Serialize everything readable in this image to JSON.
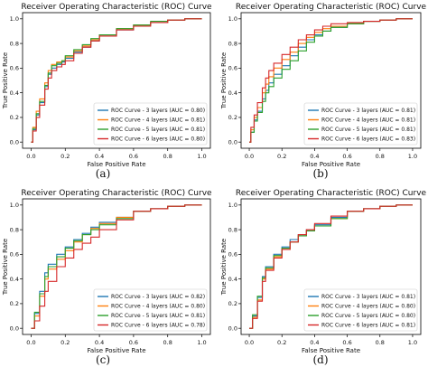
{
  "figure": {
    "captions": [
      "(a)",
      "(b)",
      "(c)",
      "(d)"
    ]
  },
  "chart_data": [
    {
      "type": "line",
      "panel": "(a)",
      "title": "Receiver Operating Characteristic (ROC) Curve",
      "xlabel": "False Positive Rate",
      "ylabel": "True Positive Rate",
      "xlim": [
        -0.05,
        1.05
      ],
      "ylim": [
        -0.05,
        1.05
      ],
      "xticks": [
        "0.0",
        "0.2",
        "0.4",
        "0.6",
        "0.8",
        "1.0"
      ],
      "yticks": [
        "0.0",
        "0.2",
        "0.4",
        "0.6",
        "0.8",
        "1.0"
      ],
      "grid": false,
      "legend_position": "lower-right",
      "series": [
        {
          "name": "ROC Curve - 3 layers (AUC = 0.80)",
          "color": "#1f77b4",
          "x": [
            0,
            0.01,
            0.03,
            0.05,
            0.08,
            0.1,
            0.12,
            0.15,
            0.18,
            0.2,
            0.25,
            0.3,
            0.35,
            0.4,
            0.5,
            0.6,
            0.7,
            0.8,
            0.9,
            1.0
          ],
          "y": [
            0,
            0.1,
            0.22,
            0.32,
            0.45,
            0.55,
            0.6,
            0.63,
            0.65,
            0.68,
            0.73,
            0.77,
            0.82,
            0.86,
            0.91,
            0.95,
            0.97,
            0.99,
            1.0,
            1.0
          ]
        },
        {
          "name": "ROC Curve - 4 layers (AUC = 0.81)",
          "color": "#ff7f0e",
          "x": [
            0,
            0.01,
            0.03,
            0.05,
            0.08,
            0.1,
            0.12,
            0.15,
            0.18,
            0.2,
            0.25,
            0.3,
            0.35,
            0.4,
            0.5,
            0.6,
            0.7,
            0.8,
            0.9,
            1.0
          ],
          "y": [
            0,
            0.12,
            0.25,
            0.35,
            0.48,
            0.58,
            0.63,
            0.65,
            0.66,
            0.69,
            0.74,
            0.78,
            0.83,
            0.87,
            0.92,
            0.95,
            0.97,
            0.99,
            1.0,
            1.0
          ]
        },
        {
          "name": "ROC Curve - 5 layers (AUC = 0.81)",
          "color": "#2ca02c",
          "x": [
            0,
            0.01,
            0.03,
            0.05,
            0.08,
            0.1,
            0.12,
            0.15,
            0.18,
            0.2,
            0.25,
            0.3,
            0.35,
            0.4,
            0.5,
            0.6,
            0.7,
            0.8,
            0.9,
            1.0
          ],
          "y": [
            0,
            0.11,
            0.23,
            0.33,
            0.46,
            0.56,
            0.62,
            0.64,
            0.66,
            0.7,
            0.75,
            0.79,
            0.84,
            0.87,
            0.92,
            0.95,
            0.98,
            0.99,
            1.0,
            1.0
          ]
        },
        {
          "name": "ROC Curve - 6 layers (AUC = 0.80)",
          "color": "#d62728",
          "x": [
            0,
            0.01,
            0.03,
            0.05,
            0.08,
            0.1,
            0.12,
            0.15,
            0.18,
            0.2,
            0.25,
            0.3,
            0.35,
            0.4,
            0.5,
            0.6,
            0.7,
            0.8,
            0.9,
            1.0
          ],
          "y": [
            0,
            0.09,
            0.2,
            0.3,
            0.43,
            0.52,
            0.58,
            0.61,
            0.63,
            0.66,
            0.72,
            0.77,
            0.82,
            0.86,
            0.91,
            0.94,
            0.97,
            0.99,
            1.0,
            1.0
          ]
        }
      ]
    },
    {
      "type": "line",
      "panel": "(b)",
      "title": "Receiver Operating Characteristic (ROC) Curve",
      "xlabel": "False Positive Rate",
      "ylabel": "True Positive Rate",
      "xlim": [
        -0.05,
        1.05
      ],
      "ylim": [
        -0.05,
        1.05
      ],
      "xticks": [
        "0.0",
        "0.2",
        "0.4",
        "0.6",
        "0.8",
        "1.0"
      ],
      "yticks": [
        "0.0",
        "0.2",
        "0.4",
        "0.6",
        "0.8",
        "1.0"
      ],
      "grid": false,
      "legend_position": "lower-right",
      "series": [
        {
          "name": "ROC Curve - 3 layers (AUC = 0.81)",
          "color": "#1f77b4",
          "x": [
            0,
            0.01,
            0.03,
            0.05,
            0.08,
            0.1,
            0.12,
            0.15,
            0.2,
            0.25,
            0.3,
            0.35,
            0.4,
            0.45,
            0.5,
            0.6,
            0.7,
            0.8,
            0.9,
            1.0
          ],
          "y": [
            0,
            0.08,
            0.18,
            0.25,
            0.35,
            0.42,
            0.48,
            0.55,
            0.62,
            0.7,
            0.77,
            0.83,
            0.87,
            0.9,
            0.93,
            0.96,
            0.98,
            0.99,
            1.0,
            1.0
          ]
        },
        {
          "name": "ROC Curve - 4 layers (AUC = 0.81)",
          "color": "#ff7f0e",
          "x": [
            0,
            0.01,
            0.03,
            0.05,
            0.08,
            0.1,
            0.12,
            0.15,
            0.2,
            0.25,
            0.3,
            0.35,
            0.4,
            0.45,
            0.5,
            0.6,
            0.7,
            0.8,
            0.9,
            1.0
          ],
          "y": [
            0,
            0.1,
            0.2,
            0.28,
            0.4,
            0.47,
            0.53,
            0.6,
            0.67,
            0.73,
            0.8,
            0.85,
            0.89,
            0.92,
            0.94,
            0.96,
            0.98,
            0.99,
            1.0,
            1.0
          ]
        },
        {
          "name": "ROC Curve - 5 layers (AUC = 0.81)",
          "color": "#2ca02c",
          "x": [
            0,
            0.01,
            0.03,
            0.05,
            0.08,
            0.1,
            0.12,
            0.15,
            0.2,
            0.25,
            0.3,
            0.35,
            0.4,
            0.45,
            0.5,
            0.6,
            0.7,
            0.8,
            0.9,
            1.0
          ],
          "y": [
            0,
            0.08,
            0.17,
            0.24,
            0.33,
            0.4,
            0.45,
            0.52,
            0.59,
            0.66,
            0.74,
            0.81,
            0.86,
            0.9,
            0.93,
            0.96,
            0.98,
            0.99,
            1.0,
            1.0
          ]
        },
        {
          "name": "ROC Curve - 6 layers (AUC = 0.83)",
          "color": "#d62728",
          "x": [
            0,
            0.01,
            0.03,
            0.05,
            0.08,
            0.1,
            0.12,
            0.15,
            0.2,
            0.25,
            0.3,
            0.35,
            0.4,
            0.45,
            0.5,
            0.6,
            0.7,
            0.8,
            0.9,
            1.0
          ],
          "y": [
            0,
            0.12,
            0.22,
            0.32,
            0.44,
            0.52,
            0.58,
            0.64,
            0.71,
            0.77,
            0.83,
            0.87,
            0.91,
            0.94,
            0.96,
            0.97,
            0.98,
            0.99,
            1.0,
            1.0
          ]
        }
      ]
    },
    {
      "type": "line",
      "panel": "(c)",
      "title": "Receiver Operating Characteristic (ROC) Curve",
      "xlabel": "False Positive Rate",
      "ylabel": "True Positive Rate",
      "xlim": [
        -0.05,
        1.05
      ],
      "ylim": [
        -0.05,
        1.05
      ],
      "xticks": [
        "0.0",
        "0.2",
        "0.4",
        "0.6",
        "0.8",
        "1.0"
      ],
      "yticks": [
        "0.0",
        "0.2",
        "0.4",
        "0.6",
        "0.8",
        "1.0"
      ],
      "grid": false,
      "legend_position": "lower-right",
      "series": [
        {
          "name": "ROC Curve - 3 layers (AUC = 0.82)",
          "color": "#1f77b4",
          "x": [
            0,
            0.02,
            0.05,
            0.08,
            0.1,
            0.15,
            0.2,
            0.25,
            0.3,
            0.35,
            0.4,
            0.5,
            0.6,
            0.7,
            0.8,
            0.9,
            1.0
          ],
          "y": [
            0,
            0.12,
            0.3,
            0.45,
            0.52,
            0.6,
            0.66,
            0.72,
            0.77,
            0.82,
            0.86,
            0.9,
            0.95,
            0.97,
            0.99,
            1.0,
            1.0
          ]
        },
        {
          "name": "ROC Curve - 4 layers (AUC = 0.80)",
          "color": "#ff7f0e",
          "x": [
            0,
            0.02,
            0.05,
            0.08,
            0.1,
            0.15,
            0.2,
            0.25,
            0.3,
            0.35,
            0.4,
            0.5,
            0.6,
            0.7,
            0.8,
            0.9,
            1.0
          ],
          "y": [
            0,
            0.1,
            0.26,
            0.4,
            0.48,
            0.56,
            0.63,
            0.7,
            0.76,
            0.81,
            0.85,
            0.9,
            0.95,
            0.97,
            0.99,
            1.0,
            1.0
          ]
        },
        {
          "name": "ROC Curve - 5 layers (AUC = 0.81)",
          "color": "#2ca02c",
          "x": [
            0,
            0.02,
            0.05,
            0.08,
            0.1,
            0.15,
            0.2,
            0.25,
            0.3,
            0.35,
            0.4,
            0.5,
            0.6,
            0.7,
            0.8,
            0.9,
            1.0
          ],
          "y": [
            0,
            0.13,
            0.28,
            0.42,
            0.5,
            0.58,
            0.65,
            0.71,
            0.76,
            0.8,
            0.84,
            0.89,
            0.95,
            0.97,
            0.99,
            1.0,
            1.0
          ]
        },
        {
          "name": "ROC Curve - 6 layers (AUC = 0.78)",
          "color": "#d62728",
          "x": [
            0,
            0.02,
            0.05,
            0.08,
            0.1,
            0.15,
            0.2,
            0.25,
            0.3,
            0.35,
            0.4,
            0.5,
            0.6,
            0.7,
            0.8,
            0.9,
            1.0
          ],
          "y": [
            0,
            0.06,
            0.18,
            0.3,
            0.38,
            0.5,
            0.57,
            0.64,
            0.69,
            0.74,
            0.8,
            0.88,
            0.95,
            0.97,
            0.99,
            1.0,
            1.0
          ]
        }
      ]
    },
    {
      "type": "line",
      "panel": "(d)",
      "title": "Receiver Operating Characteristic (ROC) Curve",
      "xlabel": "False Positive Rate",
      "ylabel": "True Positive Rate",
      "xlim": [
        -0.05,
        1.05
      ],
      "ylim": [
        -0.05,
        1.05
      ],
      "xticks": [
        "0.0",
        "0.2",
        "0.4",
        "0.6",
        "0.8",
        "1.0"
      ],
      "yticks": [
        "0.0",
        "0.2",
        "0.4",
        "0.6",
        "0.8",
        "1.0"
      ],
      "grid": false,
      "legend_position": "lower-right",
      "series": [
        {
          "name": "ROC Curve - 3 layers (AUC = 0.81)",
          "color": "#1f77b4",
          "x": [
            0,
            0.02,
            0.05,
            0.08,
            0.1,
            0.15,
            0.2,
            0.25,
            0.3,
            0.35,
            0.4,
            0.5,
            0.6,
            0.7,
            0.8,
            0.9,
            1.0
          ],
          "y": [
            0,
            0.1,
            0.25,
            0.42,
            0.5,
            0.6,
            0.66,
            0.72,
            0.76,
            0.8,
            0.84,
            0.9,
            0.95,
            0.97,
            0.99,
            1.0,
            1.0
          ]
        },
        {
          "name": "ROC Curve - 4 layers (AUC = 0.80)",
          "color": "#ff7f0e",
          "x": [
            0,
            0.02,
            0.05,
            0.08,
            0.1,
            0.15,
            0.2,
            0.25,
            0.3,
            0.35,
            0.4,
            0.5,
            0.6,
            0.7,
            0.8,
            0.9,
            1.0
          ],
          "y": [
            0,
            0.09,
            0.23,
            0.4,
            0.48,
            0.58,
            0.64,
            0.7,
            0.75,
            0.79,
            0.83,
            0.89,
            0.95,
            0.97,
            0.99,
            1.0,
            1.0
          ]
        },
        {
          "name": "ROC Curve - 5 layers (AUC = 0.80)",
          "color": "#2ca02c",
          "x": [
            0,
            0.02,
            0.05,
            0.08,
            0.1,
            0.15,
            0.2,
            0.25,
            0.3,
            0.35,
            0.4,
            0.5,
            0.6,
            0.7,
            0.8,
            0.9,
            1.0
          ],
          "y": [
            0,
            0.11,
            0.26,
            0.41,
            0.49,
            0.59,
            0.65,
            0.7,
            0.75,
            0.79,
            0.83,
            0.89,
            0.95,
            0.97,
            0.99,
            1.0,
            1.0
          ]
        },
        {
          "name": "ROC Curve - 6 layers (AUC = 0.81)",
          "color": "#d62728",
          "x": [
            0,
            0.02,
            0.05,
            0.08,
            0.1,
            0.15,
            0.2,
            0.25,
            0.3,
            0.35,
            0.4,
            0.5,
            0.6,
            0.7,
            0.8,
            0.9,
            1.0
          ],
          "y": [
            0,
            0.08,
            0.22,
            0.38,
            0.47,
            0.57,
            0.64,
            0.7,
            0.76,
            0.8,
            0.85,
            0.91,
            0.95,
            0.97,
            0.99,
            1.0,
            1.0
          ]
        }
      ]
    }
  ]
}
